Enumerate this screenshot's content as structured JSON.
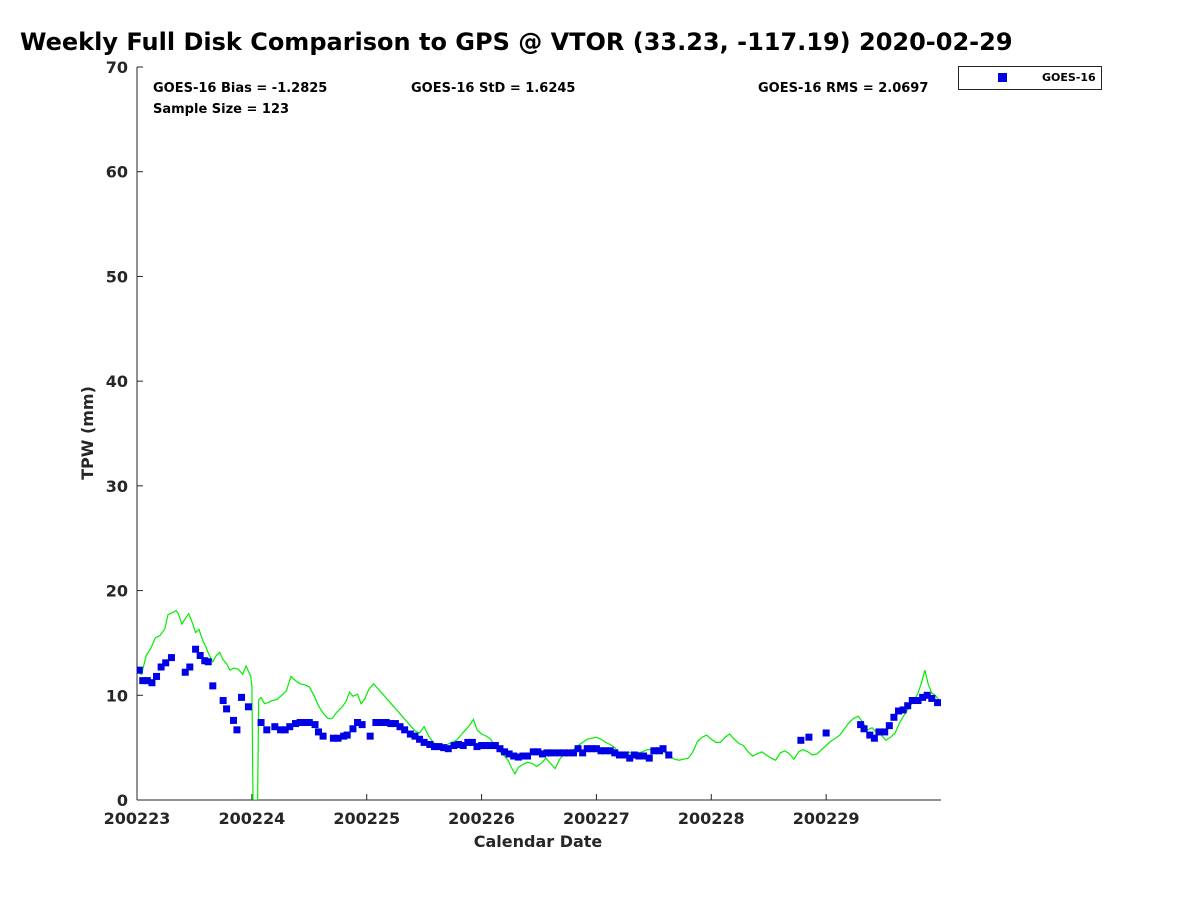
{
  "title": "Weekly Full Disk Comparison to GPS @ VTOR (33.23, -117.19) 2020-02-29",
  "stats": {
    "bias": "GOES-16 Bias = -1.2825",
    "std": "GOES-16 StD = 1.6245",
    "rms": "GOES-16 RMS = 2.0697",
    "sample_size": "Sample Size = 123"
  },
  "chart_data": {
    "type": "scatter",
    "title": "Weekly Full Disk Comparison to GPS @ VTOR (33.23, -117.19) 2020-02-29",
    "xlabel": "Calendar Date",
    "ylabel": "TPW (mm)",
    "xlim": [
      0,
      7
    ],
    "ylim": [
      0,
      70
    ],
    "x_ticks": [
      0,
      1,
      2,
      3,
      4,
      5,
      6
    ],
    "x_tick_labels": [
      "200223",
      "200224",
      "200225",
      "200226",
      "200227",
      "200228",
      "200229"
    ],
    "y_ticks": [
      0,
      10,
      20,
      30,
      40,
      50,
      60,
      70
    ],
    "y_tick_labels": [
      "0",
      "10",
      "20",
      "30",
      "40",
      "50",
      "60",
      "70"
    ],
    "grid": false,
    "legend": {
      "position": "top-right outside",
      "entries": [
        "GOES-16"
      ]
    },
    "series": [
      {
        "name": "GOES-16",
        "kind": "scatter",
        "marker": "square",
        "color": "#0000e6",
        "points": [
          [
            0.02,
            12.4
          ],
          [
            0.05,
            11.4
          ],
          [
            0.09,
            11.4
          ],
          [
            0.13,
            11.2
          ],
          [
            0.17,
            11.8
          ],
          [
            0.21,
            12.7
          ],
          [
            0.25,
            13.1
          ],
          [
            0.3,
            13.6
          ],
          [
            0.42,
            12.2
          ],
          [
            0.46,
            12.7
          ],
          [
            0.51,
            14.4
          ],
          [
            0.55,
            13.8
          ],
          [
            0.59,
            13.3
          ],
          [
            0.62,
            13.2
          ],
          [
            0.66,
            10.9
          ],
          [
            0.75,
            9.5
          ],
          [
            0.78,
            8.7
          ],
          [
            0.84,
            7.6
          ],
          [
            0.87,
            6.7
          ],
          [
            0.91,
            9.8
          ],
          [
            0.97,
            8.9
          ],
          [
            1.08,
            7.4
          ],
          [
            1.13,
            6.7
          ],
          [
            1.2,
            7.0
          ],
          [
            1.25,
            6.7
          ],
          [
            1.29,
            6.7
          ],
          [
            1.33,
            7.0
          ],
          [
            1.38,
            7.3
          ],
          [
            1.42,
            7.4
          ],
          [
            1.46,
            7.4
          ],
          [
            1.5,
            7.4
          ],
          [
            1.55,
            7.2
          ],
          [
            1.58,
            6.5
          ],
          [
            1.62,
            6.1
          ],
          [
            1.71,
            5.9
          ],
          [
            1.75,
            5.9
          ],
          [
            1.8,
            6.1
          ],
          [
            1.83,
            6.2
          ],
          [
            1.88,
            6.8
          ],
          [
            1.92,
            7.4
          ],
          [
            1.96,
            7.2
          ],
          [
            2.03,
            6.1
          ],
          [
            2.08,
            7.4
          ],
          [
            2.12,
            7.4
          ],
          [
            2.17,
            7.4
          ],
          [
            2.21,
            7.3
          ],
          [
            2.25,
            7.3
          ],
          [
            2.29,
            7.0
          ],
          [
            2.33,
            6.7
          ],
          [
            2.38,
            6.3
          ],
          [
            2.42,
            6.1
          ],
          [
            2.46,
            5.8
          ],
          [
            2.5,
            5.5
          ],
          [
            2.55,
            5.3
          ],
          [
            2.59,
            5.1
          ],
          [
            2.63,
            5.1
          ],
          [
            2.67,
            5.0
          ],
          [
            2.71,
            4.9
          ],
          [
            2.76,
            5.2
          ],
          [
            2.8,
            5.3
          ],
          [
            2.84,
            5.2
          ],
          [
            2.88,
            5.5
          ],
          [
            2.92,
            5.5
          ],
          [
            2.96,
            5.1
          ],
          [
            3.0,
            5.2
          ],
          [
            3.04,
            5.2
          ],
          [
            3.08,
            5.2
          ],
          [
            3.12,
            5.2
          ],
          [
            3.16,
            4.9
          ],
          [
            3.2,
            4.6
          ],
          [
            3.24,
            4.4
          ],
          [
            3.28,
            4.2
          ],
          [
            3.32,
            4.1
          ],
          [
            3.36,
            4.2
          ],
          [
            3.4,
            4.2
          ],
          [
            3.45,
            4.6
          ],
          [
            3.49,
            4.6
          ],
          [
            3.53,
            4.4
          ],
          [
            3.57,
            4.5
          ],
          [
            3.61,
            4.5
          ],
          [
            3.67,
            4.5
          ],
          [
            3.72,
            4.5
          ],
          [
            3.76,
            4.5
          ],
          [
            3.8,
            4.5
          ],
          [
            3.84,
            4.9
          ],
          [
            3.88,
            4.5
          ],
          [
            3.92,
            4.9
          ],
          [
            3.96,
            4.9
          ],
          [
            4.0,
            4.9
          ],
          [
            4.04,
            4.7
          ],
          [
            4.08,
            4.7
          ],
          [
            4.12,
            4.7
          ],
          [
            4.16,
            4.5
          ],
          [
            4.2,
            4.3
          ],
          [
            4.25,
            4.3
          ],
          [
            4.29,
            4.0
          ],
          [
            4.33,
            4.3
          ],
          [
            4.37,
            4.2
          ],
          [
            4.41,
            4.2
          ],
          [
            4.46,
            4.0
          ],
          [
            4.5,
            4.7
          ],
          [
            4.55,
            4.7
          ],
          [
            4.58,
            4.9
          ],
          [
            4.63,
            4.3
          ],
          [
            5.78,
            5.7
          ],
          [
            5.85,
            6.0
          ],
          [
            6.0,
            6.4
          ],
          [
            6.3,
            7.2
          ],
          [
            6.33,
            6.8
          ],
          [
            6.38,
            6.2
          ],
          [
            6.42,
            5.9
          ],
          [
            6.46,
            6.5
          ],
          [
            6.51,
            6.5
          ],
          [
            6.55,
            7.1
          ],
          [
            6.59,
            7.9
          ],
          [
            6.63,
            8.5
          ],
          [
            6.67,
            8.6
          ],
          [
            6.71,
            9.0
          ],
          [
            6.75,
            9.5
          ],
          [
            6.8,
            9.5
          ],
          [
            6.84,
            9.8
          ],
          [
            6.88,
            10.0
          ],
          [
            6.92,
            9.7
          ],
          [
            6.97,
            9.3
          ]
        ]
      },
      {
        "kind": "line",
        "color": "#00ee00",
        "points": [
          [
            0.0,
            12.2
          ],
          [
            0.04,
            12.0
          ],
          [
            0.08,
            13.8
          ],
          [
            0.12,
            14.5
          ],
          [
            0.16,
            15.5
          ],
          [
            0.2,
            15.7
          ],
          [
            0.24,
            16.3
          ],
          [
            0.27,
            17.7
          ],
          [
            0.31,
            17.9
          ],
          [
            0.34,
            18.1
          ],
          [
            0.36,
            17.8
          ],
          [
            0.39,
            16.8
          ],
          [
            0.42,
            17.3
          ],
          [
            0.45,
            17.8
          ],
          [
            0.48,
            17.0
          ],
          [
            0.51,
            16.0
          ],
          [
            0.54,
            16.3
          ],
          [
            0.57,
            15.3
          ],
          [
            0.6,
            14.6
          ],
          [
            0.63,
            13.8
          ],
          [
            0.66,
            13.2
          ],
          [
            0.69,
            13.8
          ],
          [
            0.72,
            14.1
          ],
          [
            0.75,
            13.4
          ],
          [
            0.78,
            13.0
          ],
          [
            0.81,
            12.4
          ],
          [
            0.84,
            12.6
          ],
          [
            0.88,
            12.5
          ],
          [
            0.92,
            12.0
          ],
          [
            0.95,
            12.8
          ],
          [
            0.99,
            11.8
          ],
          [
            1.0,
            10.8
          ],
          [
            1.01,
            0.0
          ],
          [
            1.05,
            0.0
          ],
          [
            1.06,
            9.6
          ],
          [
            1.08,
            9.8
          ],
          [
            1.11,
            9.2
          ],
          [
            1.14,
            9.3
          ],
          [
            1.18,
            9.5
          ],
          [
            1.22,
            9.6
          ],
          [
            1.26,
            10.0
          ],
          [
            1.3,
            10.4
          ],
          [
            1.34,
            11.8
          ],
          [
            1.38,
            11.4
          ],
          [
            1.42,
            11.1
          ],
          [
            1.46,
            11.0
          ],
          [
            1.5,
            10.8
          ],
          [
            1.54,
            10.0
          ],
          [
            1.58,
            9.0
          ],
          [
            1.62,
            8.3
          ],
          [
            1.66,
            7.8
          ],
          [
            1.7,
            7.8
          ],
          [
            1.74,
            8.4
          ],
          [
            1.78,
            8.8
          ],
          [
            1.82,
            9.4
          ],
          [
            1.85,
            10.3
          ],
          [
            1.88,
            9.9
          ],
          [
            1.92,
            10.1
          ],
          [
            1.95,
            9.2
          ],
          [
            1.98,
            9.6
          ],
          [
            2.02,
            10.6
          ],
          [
            2.06,
            11.1
          ],
          [
            2.1,
            10.6
          ],
          [
            2.14,
            10.1
          ],
          [
            2.18,
            9.6
          ],
          [
            2.22,
            9.1
          ],
          [
            2.26,
            8.6
          ],
          [
            2.3,
            8.1
          ],
          [
            2.34,
            7.6
          ],
          [
            2.38,
            7.1
          ],
          [
            2.42,
            6.6
          ],
          [
            2.46,
            6.4
          ],
          [
            2.5,
            7.0
          ],
          [
            2.54,
            6.1
          ],
          [
            2.58,
            5.5
          ],
          [
            2.62,
            5.2
          ],
          [
            2.66,
            5.0
          ],
          [
            2.7,
            5.3
          ],
          [
            2.74,
            5.5
          ],
          [
            2.78,
            5.7
          ],
          [
            2.82,
            6.2
          ],
          [
            2.86,
            6.7
          ],
          [
            2.9,
            7.2
          ],
          [
            2.93,
            7.7
          ],
          [
            2.96,
            6.7
          ],
          [
            3.0,
            6.3
          ],
          [
            3.04,
            6.1
          ],
          [
            3.08,
            5.8
          ],
          [
            3.12,
            5.0
          ],
          [
            3.16,
            4.6
          ],
          [
            3.2,
            4.2
          ],
          [
            3.23,
            3.8
          ],
          [
            3.26,
            3.1
          ],
          [
            3.29,
            2.5
          ],
          [
            3.32,
            3.1
          ],
          [
            3.36,
            3.4
          ],
          [
            3.4,
            3.6
          ],
          [
            3.44,
            3.5
          ],
          [
            3.48,
            3.2
          ],
          [
            3.52,
            3.5
          ],
          [
            3.56,
            4.0
          ],
          [
            3.6,
            3.5
          ],
          [
            3.64,
            3.0
          ],
          [
            3.68,
            3.9
          ],
          [
            3.72,
            4.4
          ],
          [
            3.76,
            4.7
          ],
          [
            3.8,
            4.8
          ],
          [
            3.84,
            5.2
          ],
          [
            3.88,
            5.5
          ],
          [
            3.92,
            5.8
          ],
          [
            3.96,
            5.9
          ],
          [
            4.0,
            6.0
          ],
          [
            4.04,
            5.8
          ],
          [
            4.08,
            5.5
          ],
          [
            4.12,
            5.3
          ],
          [
            4.16,
            5.0
          ],
          [
            4.2,
            4.4
          ],
          [
            4.24,
            4.2
          ],
          [
            4.28,
            4.6
          ],
          [
            4.32,
            4.3
          ],
          [
            4.36,
            4.5
          ],
          [
            4.4,
            4.6
          ],
          [
            4.44,
            4.8
          ],
          [
            4.48,
            4.8
          ],
          [
            4.52,
            5.0
          ],
          [
            4.56,
            4.9
          ],
          [
            4.6,
            4.5
          ],
          [
            4.64,
            4.2
          ],
          [
            4.68,
            3.9
          ],
          [
            4.72,
            3.8
          ],
          [
            4.76,
            3.9
          ],
          [
            4.8,
            4.0
          ],
          [
            4.84,
            4.6
          ],
          [
            4.88,
            5.6
          ],
          [
            4.92,
            6.0
          ],
          [
            4.96,
            6.2
          ],
          [
            5.0,
            5.8
          ],
          [
            5.04,
            5.5
          ],
          [
            5.08,
            5.5
          ],
          [
            5.12,
            6.0
          ],
          [
            5.16,
            6.3
          ],
          [
            5.2,
            5.8
          ],
          [
            5.24,
            5.4
          ],
          [
            5.28,
            5.2
          ],
          [
            5.32,
            4.6
          ],
          [
            5.36,
            4.2
          ],
          [
            5.4,
            4.4
          ],
          [
            5.44,
            4.6
          ],
          [
            5.48,
            4.3
          ],
          [
            5.52,
            4.0
          ],
          [
            5.56,
            3.8
          ],
          [
            5.6,
            4.5
          ],
          [
            5.64,
            4.7
          ],
          [
            5.68,
            4.4
          ],
          [
            5.72,
            3.9
          ],
          [
            5.76,
            4.6
          ],
          [
            5.8,
            4.8
          ],
          [
            5.84,
            4.6
          ],
          [
            5.88,
            4.3
          ],
          [
            5.92,
            4.4
          ],
          [
            5.96,
            4.8
          ],
          [
            6.0,
            5.2
          ],
          [
            6.04,
            5.6
          ],
          [
            6.08,
            5.9
          ],
          [
            6.12,
            6.2
          ],
          [
            6.16,
            6.8
          ],
          [
            6.2,
            7.4
          ],
          [
            6.24,
            7.8
          ],
          [
            6.28,
            8.0
          ],
          [
            6.32,
            7.4
          ],
          [
            6.36,
            6.7
          ],
          [
            6.4,
            6.9
          ],
          [
            6.44,
            6.4
          ],
          [
            6.48,
            6.2
          ],
          [
            6.52,
            5.7
          ],
          [
            6.56,
            6.0
          ],
          [
            6.6,
            6.4
          ],
          [
            6.64,
            7.4
          ],
          [
            6.68,
            8.1
          ],
          [
            6.72,
            8.8
          ],
          [
            6.76,
            9.4
          ],
          [
            6.8,
            10.2
          ],
          [
            6.83,
            11.2
          ],
          [
            6.86,
            12.4
          ],
          [
            6.89,
            11.0
          ],
          [
            6.92,
            10.2
          ],
          [
            6.95,
            10.0
          ],
          [
            6.98,
            9.6
          ]
        ]
      }
    ]
  }
}
